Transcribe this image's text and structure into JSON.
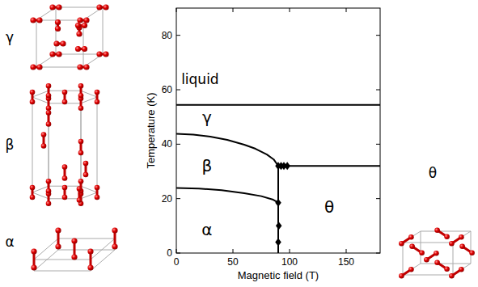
{
  "chart_data": {
    "type": "line",
    "x_label": "Magnetic field (T)",
    "y_label": "Temperature (K)",
    "xlim": [
      0,
      180
    ],
    "ylim": [
      0,
      90
    ],
    "xticks": [
      0,
      50,
      100,
      150
    ],
    "yticks": [
      0,
      20,
      40,
      60,
      80
    ],
    "series": [
      {
        "type": "line",
        "color": "#000000",
        "x": [
          0,
          180
        ],
        "values": [
          54.4,
          54.4
        ]
      },
      {
        "type": "line",
        "color": "#000000",
        "x": [
          0,
          15,
          30,
          45,
          60,
          70,
          80,
          86,
          90
        ],
        "values": [
          43.8,
          43.5,
          42.8,
          41.6,
          39.8,
          38.3,
          36.2,
          34.4,
          32.0
        ]
      },
      {
        "type": "line",
        "color": "#000000",
        "x": [
          0,
          20,
          40,
          60,
          75,
          85,
          90
        ],
        "values": [
          23.9,
          23.7,
          23.1,
          22.0,
          20.9,
          19.7,
          18.5
        ]
      },
      {
        "type": "line",
        "color": "#000000",
        "x": [
          90,
          90
        ],
        "values": [
          32.0,
          0
        ]
      },
      {
        "type": "line",
        "color": "#000000",
        "x": [
          90,
          180
        ],
        "values": [
          32.0,
          32.0
        ]
      },
      {
        "type": "scatter",
        "color": "#000000",
        "marker": "diamond",
        "x": [
          90,
          92.5,
          95,
          98,
          90,
          90.5,
          90
        ],
        "values": [
          32.0,
          32.0,
          32.0,
          32.0,
          18.5,
          10.0,
          4.0
        ]
      }
    ],
    "annotations": [
      {
        "text": "liquid",
        "x": 21,
        "y": 64
      },
      {
        "text": "γ",
        "x": 27,
        "y": 50
      },
      {
        "text": "β",
        "x": 27,
        "y": 32
      },
      {
        "text": "α",
        "x": 27,
        "y": 8.5
      },
      {
        "text": "θ",
        "x": 135,
        "y": 17
      }
    ]
  },
  "structures": [
    {
      "label": "γ"
    },
    {
      "label": "β"
    },
    {
      "label": "α"
    },
    {
      "label": "θ"
    }
  ]
}
